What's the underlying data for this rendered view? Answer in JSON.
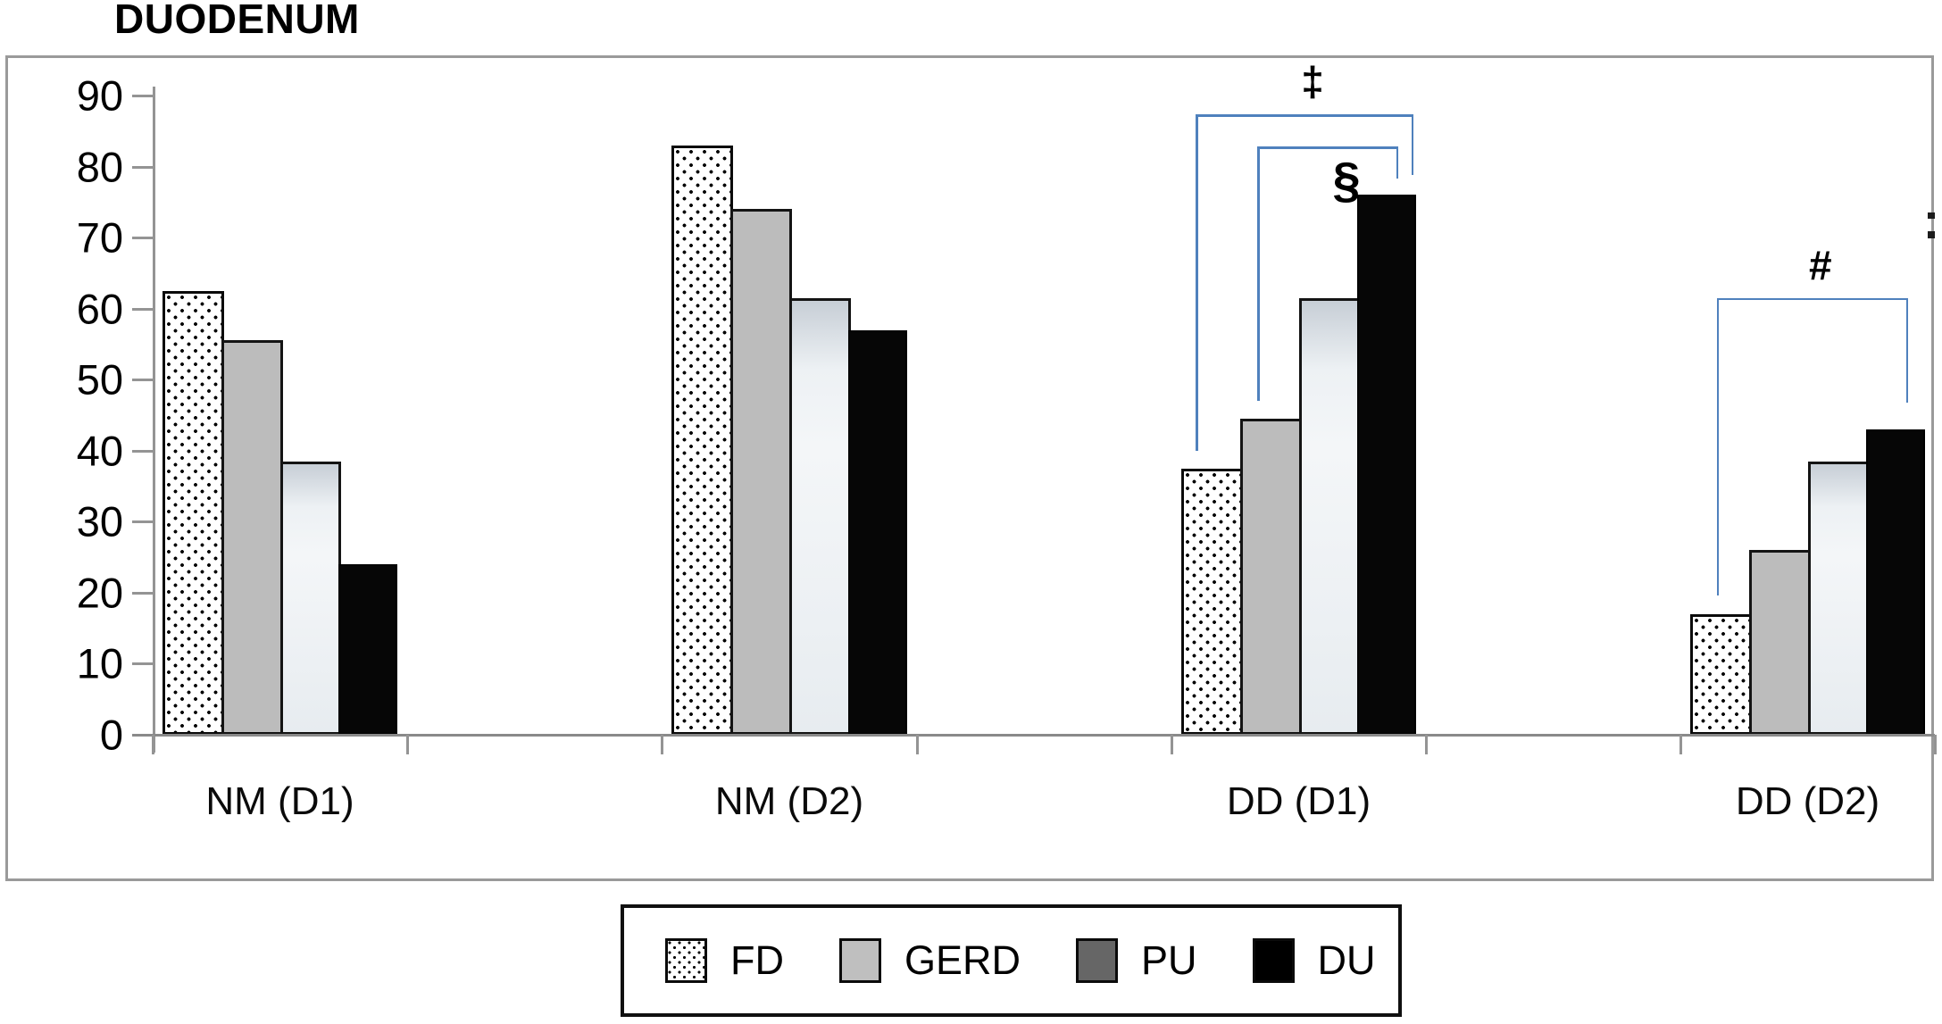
{
  "title": "DUODENUM",
  "chart_data": {
    "type": "bar",
    "title": "DUODENUM",
    "categories": [
      "NM (D1)",
      "NM (D2)",
      "DD (D1)",
      "DD (D2)"
    ],
    "series": [
      {
        "name": "FD",
        "fill": "dots",
        "legend_fill": "dots",
        "values": [
          62.5,
          83,
          37.5,
          17
        ]
      },
      {
        "name": "GERD",
        "fill": "#bcbcbc",
        "legend_fill": "#bfbfbf",
        "values": [
          55.5,
          74,
          44.5,
          26
        ]
      },
      {
        "name": "PU",
        "fill": "light",
        "legend_fill": "#666666",
        "values": [
          38.5,
          61.5,
          61.5,
          38.5
        ]
      },
      {
        "name": "DU",
        "fill": "#060606",
        "legend_fill": "#000000",
        "values": [
          24,
          57,
          76,
          43
        ]
      }
    ],
    "ylabel": "",
    "xlabel": "",
    "ylim": [
      0,
      90
    ],
    "yticks": [
      0,
      10,
      20,
      30,
      40,
      50,
      60,
      70,
      80,
      90
    ],
    "grid": false,
    "legend_position": "bottom",
    "bracket_color": "#4f81bd",
    "annotations": [
      {
        "symbol": "‡",
        "category_index": 2,
        "from_bar": 0,
        "from_frac": 0.25,
        "to_bar": 3,
        "to_frac": 0.92,
        "top": 87.3,
        "left_end": 40.0,
        "right_end": 78.8,
        "label_side": "above",
        "label_size": 46
      },
      {
        "symbol": "§",
        "category_index": 2,
        "from_bar": 1,
        "from_frac": 0.3,
        "to_bar": 3,
        "to_frac": 0.66,
        "top": 82.8,
        "left_end": 47.0,
        "right_end": 78.3,
        "label_side": "below",
        "label_size": 56
      },
      {
        "symbol": "#",
        "category_index": 3,
        "from_bar": 0,
        "from_frac": 0.45,
        "to_bar": 3,
        "to_frac": 0.68,
        "top": 61.5,
        "left_end": 19.6,
        "right_end": 46.8,
        "label_side": "above",
        "label_size": 46
      }
    ]
  },
  "legend": {
    "items": [
      {
        "label": "FD"
      },
      {
        "label": "GERD"
      },
      {
        "label": "PU"
      },
      {
        "label": "DU"
      }
    ]
  }
}
